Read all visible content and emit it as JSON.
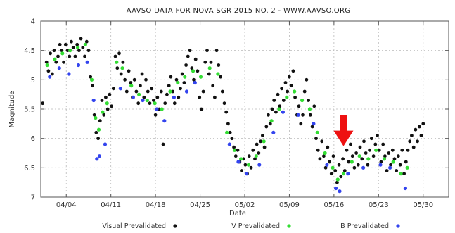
{
  "chart_data": {
    "type": "scatter",
    "title": "AAVSO DATA FOR NOVA SGR 2015 NO. 2 - WWW.AAVSO.ORG",
    "xlabel": "Date",
    "ylabel": "Magnitude",
    "ylim": [
      4,
      7
    ],
    "y_inverted": true,
    "y_ticks": [
      4,
      4.5,
      5,
      5.5,
      6,
      6.5,
      7
    ],
    "y_tick_labels": [
      "4",
      "4.5",
      "5",
      "5.5",
      "6",
      "6.5",
      "7"
    ],
    "x_ticks": [
      "04/04",
      "04/11",
      "04/18",
      "04/25",
      "05/02",
      "05/09",
      "05/16",
      "05/23",
      "05/30"
    ],
    "x_range_days": [
      0,
      64
    ],
    "x_tick_days": [
      4,
      11,
      18,
      25,
      32,
      39,
      46,
      53,
      60
    ],
    "grid": true,
    "legend_position": "bottom",
    "series": [
      {
        "name": "Visual Prevalidated",
        "color": "#111111",
        "points": [
          [
            0.3,
            5.4
          ],
          [
            0.9,
            4.7
          ],
          [
            1.2,
            4.85
          ],
          [
            1.5,
            4.55
          ],
          [
            1.8,
            4.9
          ],
          [
            2.1,
            4.5
          ],
          [
            2.4,
            4.7
          ],
          [
            2.7,
            4.6
          ],
          [
            3.0,
            4.4
          ],
          [
            3.3,
            4.5
          ],
          [
            3.6,
            4.7
          ],
          [
            3.9,
            4.4
          ],
          [
            4.2,
            4.5
          ],
          [
            4.5,
            4.6
          ],
          [
            4.8,
            4.35
          ],
          [
            5.1,
            4.45
          ],
          [
            5.4,
            4.6
          ],
          [
            5.7,
            4.4
          ],
          [
            6.0,
            4.5
          ],
          [
            6.3,
            4.3
          ],
          [
            6.6,
            4.45
          ],
          [
            6.9,
            4.6
          ],
          [
            7.2,
            4.35
          ],
          [
            7.5,
            4.5
          ],
          [
            7.8,
            4.95
          ],
          [
            8.1,
            5.1
          ],
          [
            8.4,
            5.6
          ],
          [
            8.7,
            5.9
          ],
          [
            9.0,
            6.0
          ],
          [
            9.3,
            5.7
          ],
          [
            9.6,
            5.35
          ],
          [
            9.9,
            5.6
          ],
          [
            10.2,
            5.3
          ],
          [
            10.5,
            5.5
          ],
          [
            10.8,
            5.25
          ],
          [
            11.1,
            5.45
          ],
          [
            11.4,
            5.15
          ],
          [
            11.7,
            4.6
          ],
          [
            12.0,
            4.8
          ],
          [
            12.3,
            4.55
          ],
          [
            12.6,
            4.9
          ],
          [
            12.9,
            4.7
          ],
          [
            13.2,
            5.0
          ],
          [
            13.5,
            5.2
          ],
          [
            13.8,
            4.85
          ],
          [
            14.1,
            5.05
          ],
          [
            14.4,
            5.3
          ],
          [
            14.7,
            5.0
          ],
          [
            15.0,
            5.2
          ],
          [
            15.3,
            5.4
          ],
          [
            15.6,
            5.1
          ],
          [
            15.9,
            4.9
          ],
          [
            16.2,
            5.3
          ],
          [
            16.5,
            5.0
          ],
          [
            16.8,
            5.2
          ],
          [
            17.1,
            5.4
          ],
          [
            17.4,
            5.15
          ],
          [
            17.7,
            5.35
          ],
          [
            18.0,
            5.6
          ],
          [
            18.3,
            5.3
          ],
          [
            18.6,
            5.5
          ],
          [
            18.9,
            5.2
          ],
          [
            19.2,
            6.1
          ],
          [
            19.5,
            5.4
          ],
          [
            19.8,
            5.25
          ],
          [
            20.1,
            5.1
          ],
          [
            20.4,
            4.95
          ],
          [
            20.7,
            5.2
          ],
          [
            21.0,
            5.4
          ],
          [
            21.3,
            5.0
          ],
          [
            21.6,
            5.3
          ],
          [
            21.9,
            5.15
          ],
          [
            22.2,
            4.9
          ],
          [
            22.5,
            5.05
          ],
          [
            22.8,
            4.75
          ],
          [
            23.1,
            4.6
          ],
          [
            23.4,
            4.5
          ],
          [
            23.7,
            4.8
          ],
          [
            24.0,
            5.0
          ],
          [
            24.3,
            4.65
          ],
          [
            24.6,
            4.85
          ],
          [
            24.9,
            5.3
          ],
          [
            25.2,
            5.5
          ],
          [
            25.5,
            5.2
          ],
          [
            25.8,
            4.7
          ],
          [
            26.1,
            4.5
          ],
          [
            26.4,
            4.9
          ],
          [
            26.7,
            4.7
          ],
          [
            27.0,
            5.1
          ],
          [
            27.3,
            5.3
          ],
          [
            27.6,
            4.5
          ],
          [
            27.9,
            4.75
          ],
          [
            28.2,
            4.95
          ],
          [
            28.5,
            5.2
          ],
          [
            28.8,
            5.4
          ],
          [
            29.1,
            5.55
          ],
          [
            29.4,
            5.75
          ],
          [
            29.7,
            5.9
          ],
          [
            30.0,
            6.0
          ],
          [
            30.3,
            6.15
          ],
          [
            30.6,
            6.3
          ],
          [
            30.9,
            6.2
          ],
          [
            31.2,
            6.4
          ],
          [
            31.5,
            6.55
          ],
          [
            31.8,
            6.35
          ],
          [
            32.1,
            6.45
          ],
          [
            32.4,
            6.6
          ],
          [
            32.7,
            6.3
          ],
          [
            33.0,
            6.5
          ],
          [
            33.3,
            6.2
          ],
          [
            33.6,
            6.35
          ],
          [
            33.9,
            6.1
          ],
          [
            34.2,
            6.25
          ],
          [
            34.5,
            6.05
          ],
          [
            34.8,
            5.95
          ],
          [
            35.1,
            6.15
          ],
          [
            35.4,
            5.8
          ],
          [
            35.7,
            5.6
          ],
          [
            36.0,
            5.75
          ],
          [
            36.3,
            5.5
          ],
          [
            36.6,
            5.35
          ],
          [
            36.9,
            5.55
          ],
          [
            37.2,
            5.25
          ],
          [
            37.5,
            5.45
          ],
          [
            37.8,
            5.15
          ],
          [
            38.1,
            5.35
          ],
          [
            38.4,
            5.05
          ],
          [
            38.7,
            5.2
          ],
          [
            39.0,
            4.95
          ],
          [
            39.3,
            5.1
          ],
          [
            39.6,
            4.85
          ],
          [
            39.9,
            5.3
          ],
          [
            40.2,
            5.6
          ],
          [
            40.5,
            5.45
          ],
          [
            40.8,
            5.75
          ],
          [
            41.1,
            5.6
          ],
          [
            41.4,
            5.2
          ],
          [
            41.7,
            5.0
          ],
          [
            42.0,
            5.35
          ],
          [
            42.3,
            5.6
          ],
          [
            42.6,
            5.8
          ],
          [
            42.9,
            5.45
          ],
          [
            43.2,
            6.0
          ],
          [
            43.5,
            6.2
          ],
          [
            43.8,
            6.35
          ],
          [
            44.1,
            6.05
          ],
          [
            44.4,
            6.3
          ],
          [
            44.7,
            6.5
          ],
          [
            45.0,
            6.15
          ],
          [
            45.3,
            6.4
          ],
          [
            45.6,
            6.6
          ],
          [
            45.9,
            6.3
          ],
          [
            46.2,
            6.55
          ],
          [
            46.5,
            6.75
          ],
          [
            46.8,
            6.45
          ],
          [
            47.1,
            6.65
          ],
          [
            47.4,
            6.35
          ],
          [
            47.7,
            6.55
          ],
          [
            48.0,
            6.2
          ],
          [
            48.3,
            6.4
          ],
          [
            48.6,
            6.1
          ],
          [
            48.9,
            6.3
          ],
          [
            49.2,
            6.5
          ],
          [
            49.5,
            6.25
          ],
          [
            49.8,
            6.45
          ],
          [
            50.1,
            6.15
          ],
          [
            50.4,
            6.35
          ],
          [
            50.7,
            6.05
          ],
          [
            51.0,
            6.25
          ],
          [
            51.3,
            6.45
          ],
          [
            51.6,
            6.2
          ],
          [
            51.9,
            6.0
          ],
          [
            52.2,
            6.3
          ],
          [
            52.5,
            6.1
          ],
          [
            52.8,
            5.95
          ],
          [
            53.1,
            6.2
          ],
          [
            53.4,
            6.4
          ],
          [
            53.7,
            6.1
          ],
          [
            54.0,
            6.3
          ],
          [
            54.3,
            6.55
          ],
          [
            54.6,
            6.25
          ],
          [
            54.9,
            6.45
          ],
          [
            55.2,
            6.2
          ],
          [
            55.5,
            6.35
          ],
          [
            55.8,
            6.55
          ],
          [
            56.1,
            6.3
          ],
          [
            56.4,
            6.45
          ],
          [
            56.7,
            6.2
          ],
          [
            57.0,
            6.6
          ],
          [
            57.3,
            6.4
          ],
          [
            57.6,
            6.2
          ],
          [
            57.9,
            6.05
          ],
          [
            58.2,
            5.95
          ],
          [
            58.5,
            6.15
          ],
          [
            58.8,
            5.85
          ],
          [
            59.1,
            6.05
          ],
          [
            59.4,
            5.8
          ],
          [
            59.7,
            5.95
          ],
          [
            60.0,
            5.75
          ]
        ]
      },
      {
        "name": "V Prevalidated",
        "color": "#33dd33",
        "points": [
          [
            1.0,
            4.75
          ],
          [
            2.2,
            4.65
          ],
          [
            3.4,
            4.55
          ],
          [
            4.6,
            4.5
          ],
          [
            5.8,
            4.45
          ],
          [
            7.0,
            4.4
          ],
          [
            8.0,
            5.0
          ],
          [
            8.6,
            5.65
          ],
          [
            9.1,
            5.85
          ],
          [
            9.7,
            5.55
          ],
          [
            10.4,
            5.4
          ],
          [
            11.9,
            4.7
          ],
          [
            12.8,
            4.8
          ],
          [
            14.2,
            5.1
          ],
          [
            15.4,
            5.25
          ],
          [
            16.7,
            5.35
          ],
          [
            17.9,
            5.4
          ],
          [
            19.0,
            5.5
          ],
          [
            20.3,
            5.2
          ],
          [
            21.5,
            5.05
          ],
          [
            22.6,
            4.95
          ],
          [
            23.9,
            4.85
          ],
          [
            25.1,
            4.95
          ],
          [
            26.5,
            4.8
          ],
          [
            27.8,
            4.9
          ],
          [
            29.2,
            5.9
          ],
          [
            30.4,
            6.2
          ],
          [
            31.4,
            6.35
          ],
          [
            32.6,
            6.45
          ],
          [
            33.8,
            6.3
          ],
          [
            35.0,
            6.05
          ],
          [
            36.2,
            5.7
          ],
          [
            37.4,
            5.5
          ],
          [
            38.6,
            5.3
          ],
          [
            39.8,
            5.2
          ],
          [
            41.0,
            5.35
          ],
          [
            42.2,
            5.5
          ],
          [
            43.4,
            5.9
          ],
          [
            44.6,
            6.25
          ],
          [
            45.8,
            6.5
          ],
          [
            46.6,
            6.7
          ],
          [
            47.5,
            6.6
          ],
          [
            48.8,
            6.4
          ],
          [
            50.0,
            6.3
          ],
          [
            51.4,
            6.35
          ],
          [
            52.6,
            6.2
          ],
          [
            53.9,
            6.35
          ],
          [
            55.3,
            6.4
          ],
          [
            56.5,
            6.6
          ],
          [
            57.5,
            6.5
          ]
        ]
      },
      {
        "name": "B Prevalidated",
        "color": "#3344ee",
        "points": [
          [
            1.4,
            4.95
          ],
          [
            2.9,
            4.8
          ],
          [
            4.4,
            4.9
          ],
          [
            5.9,
            4.75
          ],
          [
            7.3,
            4.7
          ],
          [
            8.3,
            5.35
          ],
          [
            8.8,
            6.35
          ],
          [
            9.2,
            6.3
          ],
          [
            10.1,
            6.1
          ],
          [
            12.5,
            5.15
          ],
          [
            14.5,
            5.3
          ],
          [
            16.0,
            5.35
          ],
          [
            18.2,
            5.5
          ],
          [
            19.4,
            5.7
          ],
          [
            20.9,
            5.3
          ],
          [
            22.9,
            5.2
          ],
          [
            24.2,
            5.05
          ],
          [
            29.6,
            6.1
          ],
          [
            31.0,
            6.4
          ],
          [
            32.3,
            6.6
          ],
          [
            34.3,
            6.45
          ],
          [
            36.5,
            5.9
          ],
          [
            38.0,
            5.55
          ],
          [
            40.4,
            5.6
          ],
          [
            42.8,
            5.75
          ],
          [
            44.9,
            6.45
          ],
          [
            46.3,
            6.85
          ],
          [
            46.9,
            6.9
          ],
          [
            48.2,
            6.6
          ],
          [
            50.6,
            6.5
          ],
          [
            53.3,
            6.45
          ],
          [
            54.8,
            6.5
          ],
          [
            57.2,
            6.85
          ]
        ]
      }
    ],
    "annotations": [
      {
        "type": "arrow",
        "color": "#ee1111",
        "points_to_day": 47.5,
        "points_to_mag": 6.3
      }
    ],
    "legend": [
      {
        "label": "Visual Prevalidated",
        "color": "#111111"
      },
      {
        "label": "V Prevalidated",
        "color": "#33dd33"
      },
      {
        "label": "B Prevalidated",
        "color": "#3344ee"
      }
    ]
  }
}
